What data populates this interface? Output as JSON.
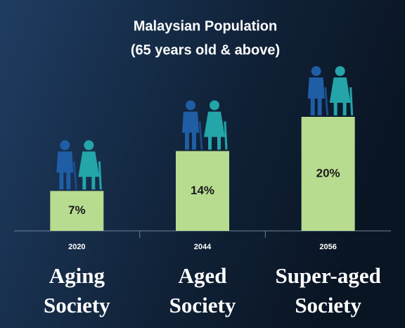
{
  "chart_data": {
    "type": "bar",
    "title": "Malaysian Population",
    "subtitle": "(65 years old & above)",
    "categories": [
      "2020",
      "2044",
      "2056"
    ],
    "values": [
      7,
      14,
      20
    ],
    "value_labels": [
      "7%",
      "14%",
      "20%"
    ],
    "color": "#b7dc8f",
    "annotations": [
      [
        "Aging",
        "Society"
      ],
      [
        "Aged",
        "Society"
      ],
      [
        "Super-aged",
        "Society"
      ]
    ]
  }
}
